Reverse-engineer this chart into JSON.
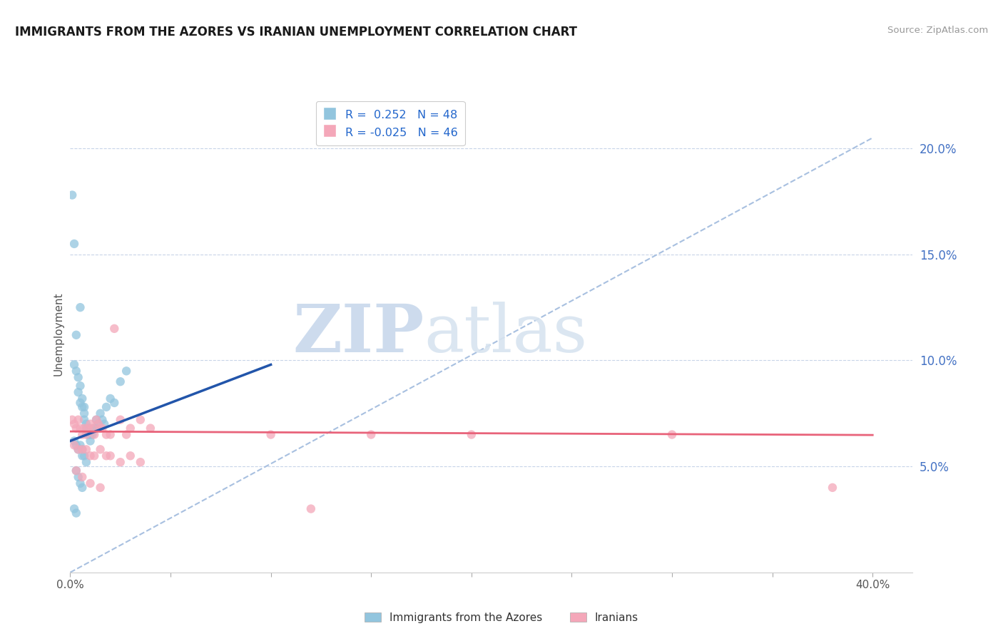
{
  "title": "IMMIGRANTS FROM THE AZORES VS IRANIAN UNEMPLOYMENT CORRELATION CHART",
  "source": "Source: ZipAtlas.com",
  "ylabel": "Unemployment",
  "right_yticks": [
    "5.0%",
    "10.0%",
    "15.0%",
    "20.0%"
  ],
  "right_ytick_vals": [
    0.05,
    0.1,
    0.15,
    0.2
  ],
  "legend_r1": "R =  0.252   N = 48",
  "legend_r2": "R = -0.025   N = 46",
  "legend_label1": "Immigrants from the Azores",
  "legend_label2": "Iranians",
  "watermark_zip": "ZIP",
  "watermark_atlas": "atlas",
  "blue_color": "#92c5de",
  "pink_color": "#f4a7b9",
  "blue_line_color": "#2255aa",
  "pink_line_color": "#e8637a",
  "dashed_line_color": "#a8c0e0",
  "blue_scatter": [
    [
      0.001,
      0.178
    ],
    [
      0.002,
      0.155
    ],
    [
      0.003,
      0.112
    ],
    [
      0.005,
      0.125
    ],
    [
      0.002,
      0.098
    ],
    [
      0.003,
      0.095
    ],
    [
      0.004,
      0.092
    ],
    [
      0.005,
      0.088
    ],
    [
      0.004,
      0.085
    ],
    [
      0.006,
      0.082
    ],
    [
      0.005,
      0.08
    ],
    [
      0.007,
      0.078
    ],
    [
      0.006,
      0.078
    ],
    [
      0.007,
      0.075
    ],
    [
      0.007,
      0.072
    ],
    [
      0.008,
      0.07
    ],
    [
      0.008,
      0.068
    ],
    [
      0.009,
      0.068
    ],
    [
      0.009,
      0.065
    ],
    [
      0.01,
      0.065
    ],
    [
      0.01,
      0.062
    ],
    [
      0.011,
      0.065
    ],
    [
      0.012,
      0.068
    ],
    [
      0.013,
      0.068
    ],
    [
      0.013,
      0.072
    ],
    [
      0.014,
      0.07
    ],
    [
      0.015,
      0.075
    ],
    [
      0.016,
      0.072
    ],
    [
      0.017,
      0.07
    ],
    [
      0.018,
      0.078
    ],
    [
      0.02,
      0.082
    ],
    [
      0.022,
      0.08
    ],
    [
      0.025,
      0.09
    ],
    [
      0.028,
      0.095
    ],
    [
      0.002,
      0.062
    ],
    [
      0.003,
      0.06
    ],
    [
      0.004,
      0.058
    ],
    [
      0.005,
      0.06
    ],
    [
      0.006,
      0.058
    ],
    [
      0.006,
      0.055
    ],
    [
      0.007,
      0.055
    ],
    [
      0.008,
      0.052
    ],
    [
      0.003,
      0.048
    ],
    [
      0.004,
      0.045
    ],
    [
      0.005,
      0.042
    ],
    [
      0.006,
      0.04
    ],
    [
      0.002,
      0.03
    ],
    [
      0.003,
      0.028
    ]
  ],
  "pink_scatter": [
    [
      0.001,
      0.072
    ],
    [
      0.002,
      0.07
    ],
    [
      0.003,
      0.068
    ],
    [
      0.004,
      0.072
    ],
    [
      0.005,
      0.068
    ],
    [
      0.006,
      0.065
    ],
    [
      0.007,
      0.068
    ],
    [
      0.008,
      0.065
    ],
    [
      0.009,
      0.068
    ],
    [
      0.01,
      0.07
    ],
    [
      0.011,
      0.068
    ],
    [
      0.012,
      0.065
    ],
    [
      0.013,
      0.072
    ],
    [
      0.014,
      0.07
    ],
    [
      0.015,
      0.068
    ],
    [
      0.016,
      0.068
    ],
    [
      0.018,
      0.065
    ],
    [
      0.02,
      0.065
    ],
    [
      0.022,
      0.115
    ],
    [
      0.025,
      0.072
    ],
    [
      0.028,
      0.065
    ],
    [
      0.03,
      0.068
    ],
    [
      0.035,
      0.072
    ],
    [
      0.04,
      0.068
    ],
    [
      0.002,
      0.06
    ],
    [
      0.004,
      0.058
    ],
    [
      0.006,
      0.058
    ],
    [
      0.008,
      0.058
    ],
    [
      0.01,
      0.055
    ],
    [
      0.012,
      0.055
    ],
    [
      0.015,
      0.058
    ],
    [
      0.018,
      0.055
    ],
    [
      0.02,
      0.055
    ],
    [
      0.025,
      0.052
    ],
    [
      0.03,
      0.055
    ],
    [
      0.035,
      0.052
    ],
    [
      0.1,
      0.065
    ],
    [
      0.15,
      0.065
    ],
    [
      0.2,
      0.065
    ],
    [
      0.3,
      0.065
    ],
    [
      0.003,
      0.048
    ],
    [
      0.006,
      0.045
    ],
    [
      0.01,
      0.042
    ],
    [
      0.015,
      0.04
    ],
    [
      0.38,
      0.04
    ],
    [
      0.12,
      0.03
    ]
  ],
  "xlim": [
    0.0,
    0.42
  ],
  "ylim": [
    0.0,
    0.225
  ],
  "blue_trend_x": [
    0.0,
    0.1
  ],
  "blue_trend_y": [
    0.062,
    0.098
  ],
  "pink_trend_x": [
    0.0,
    0.4
  ],
  "pink_trend_y": [
    0.0665,
    0.0648
  ],
  "dashed_trend_x": [
    0.0,
    0.4
  ],
  "dashed_trend_y": [
    0.0,
    0.205
  ]
}
